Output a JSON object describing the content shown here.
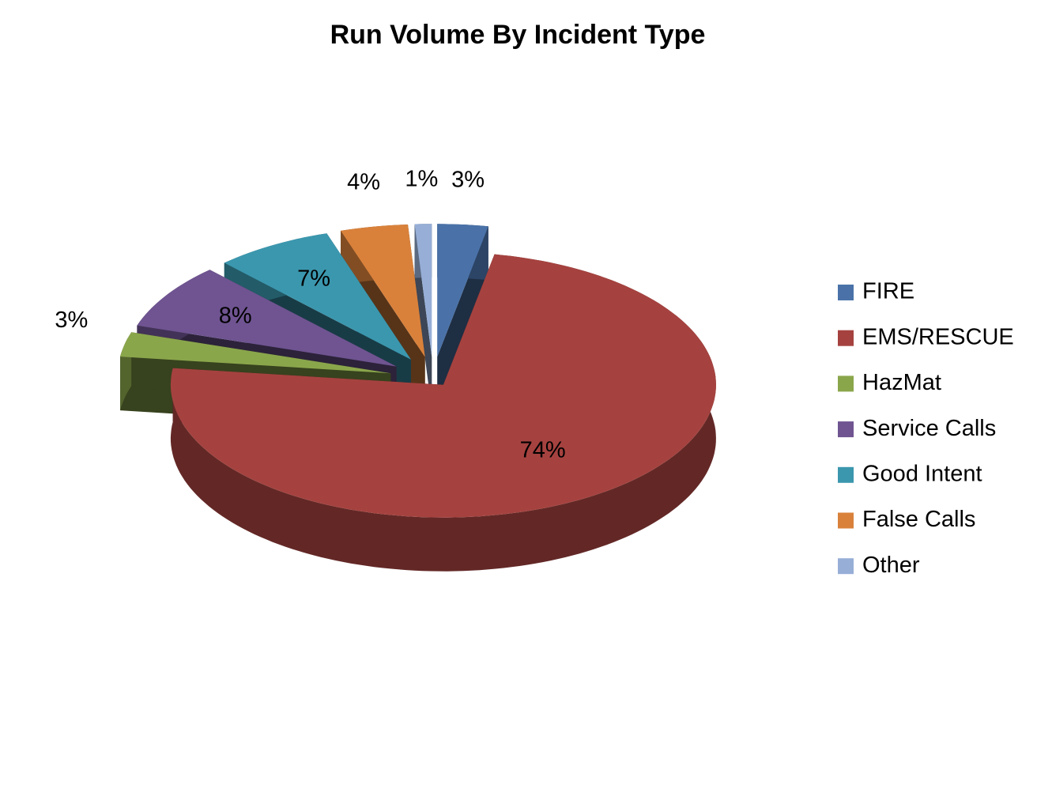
{
  "chart_data": {
    "type": "pie",
    "title": "Run Volume By Incident Type",
    "categories": [
      "FIRE",
      "EMS/RESCUE",
      "HazMat",
      "Service Calls",
      "Good Intent",
      "False Calls",
      "Other"
    ],
    "values": [
      3,
      74,
      3,
      8,
      7,
      4,
      1
    ],
    "value_labels": [
      "3%",
      "74%",
      "3%",
      "8%",
      "7%",
      "4%",
      "1%"
    ],
    "colors": [
      "#4a72a8",
      "#a5423f",
      "#8aa64b",
      "#6f5491",
      "#3b97ae",
      "#d9813b",
      "#97afd7"
    ],
    "legend": "right"
  }
}
